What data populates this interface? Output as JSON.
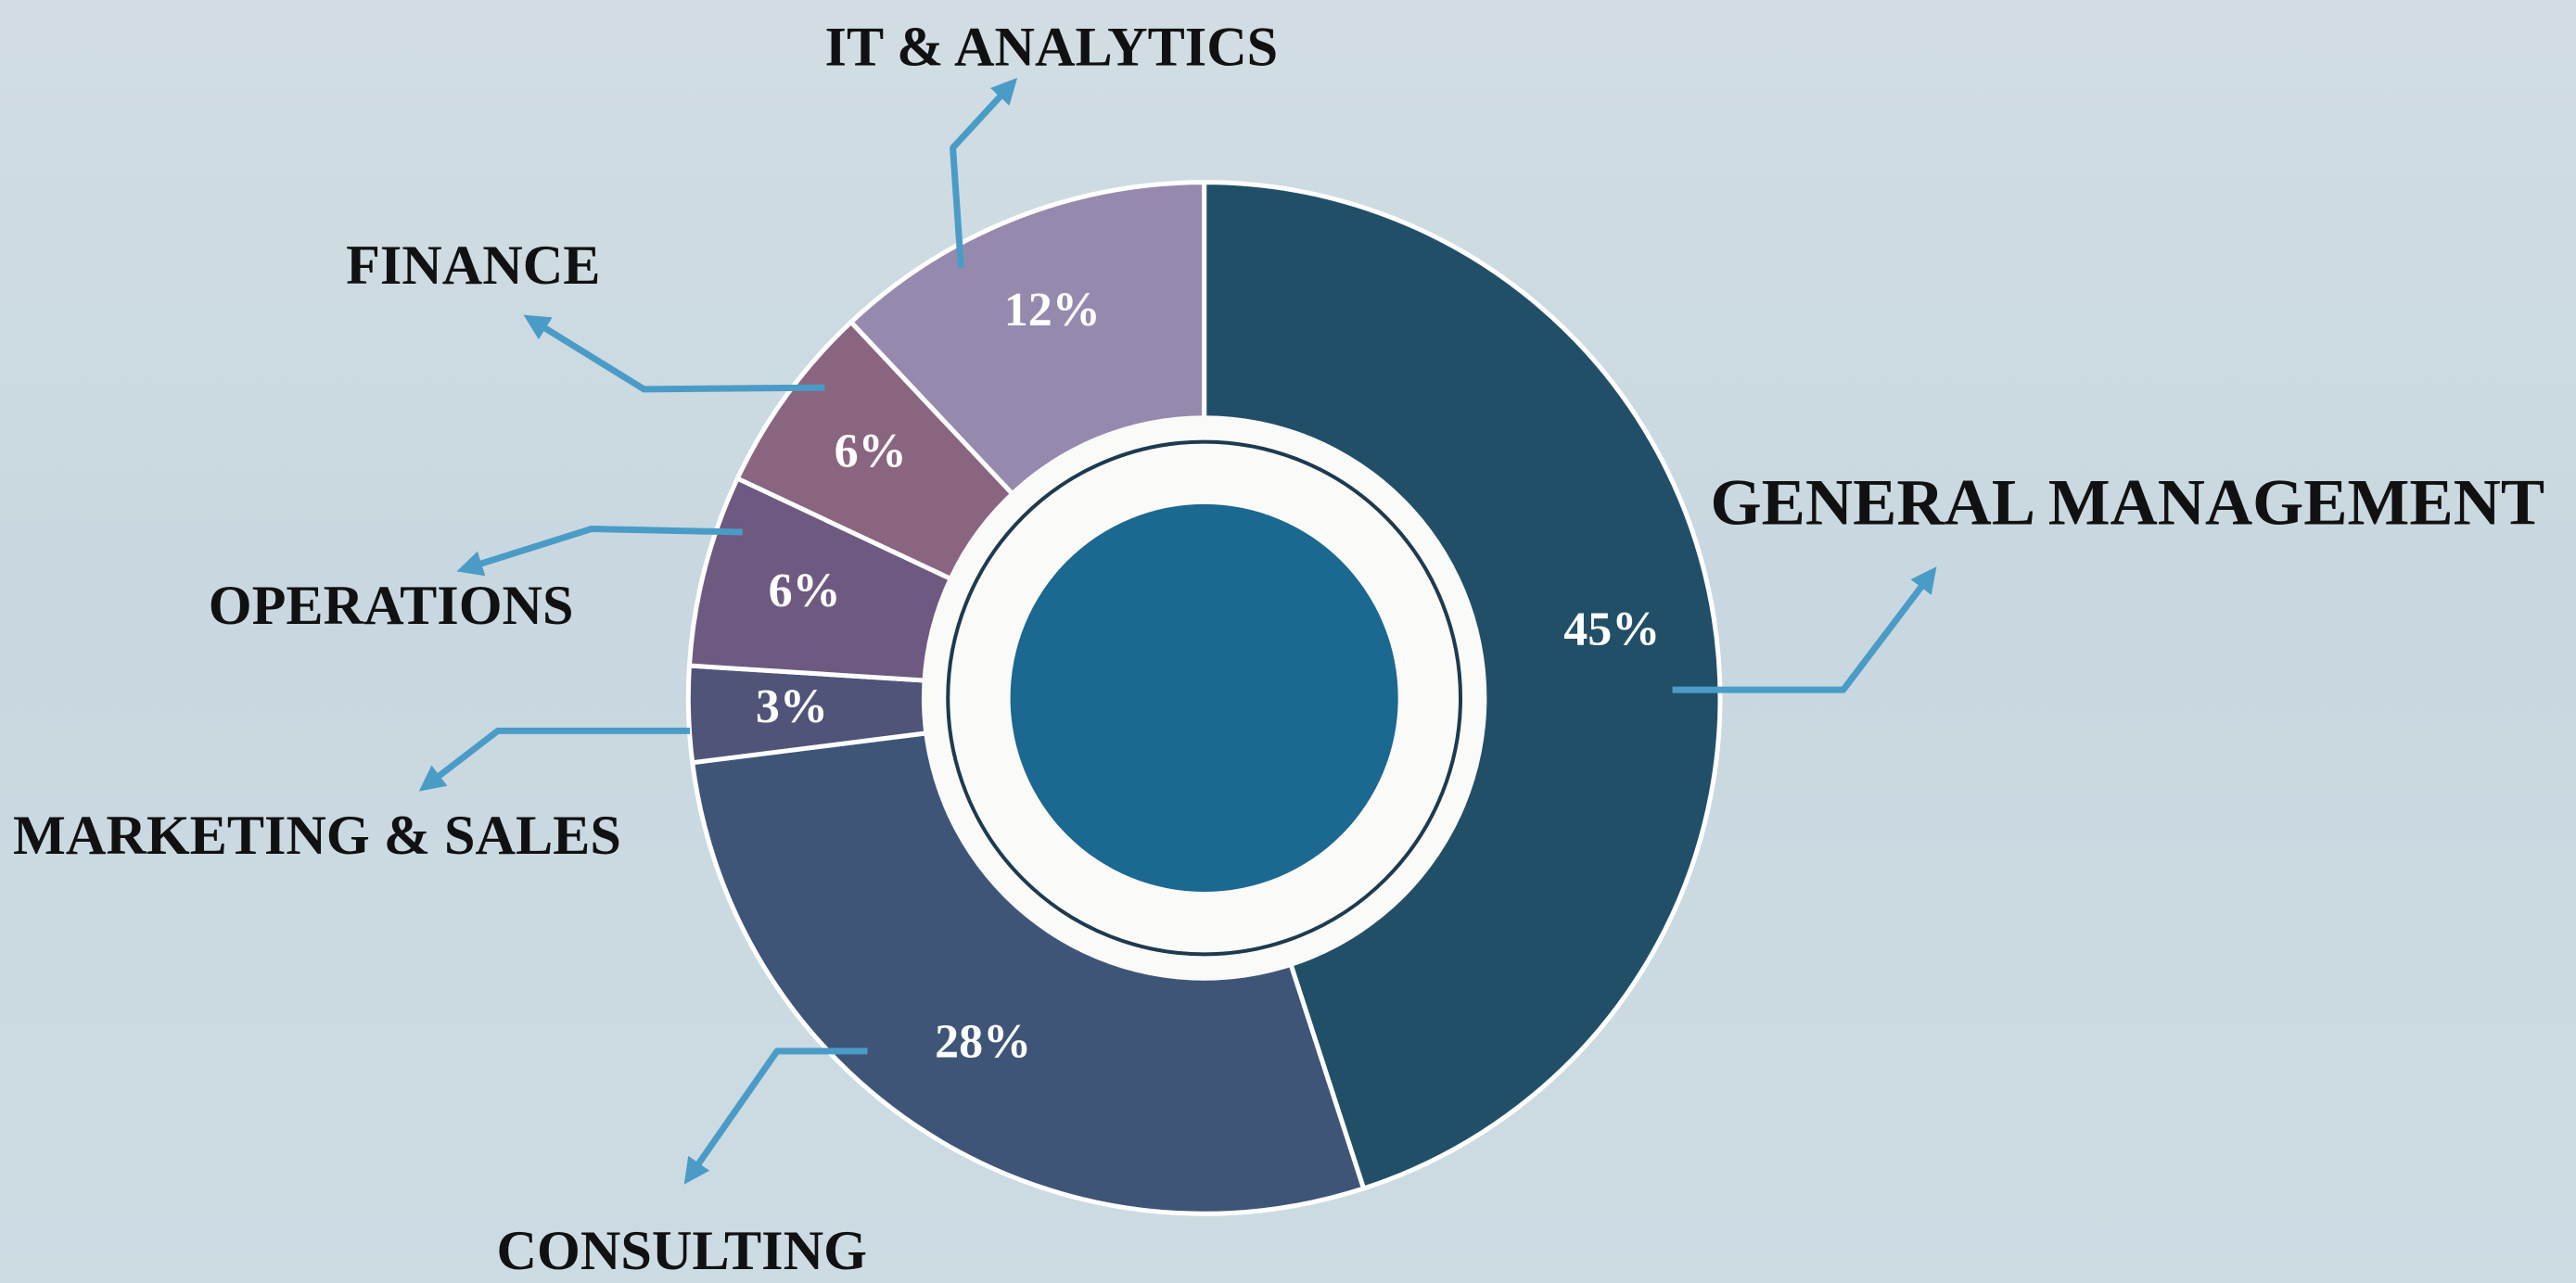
{
  "chart_data": {
    "type": "pie",
    "donut": true,
    "categories": [
      "GENERAL MANAGEMENT",
      "CONSULTING",
      "MARKETING & SALES",
      "OPERATIONS",
      "FINANCE",
      "IT & ANALYTICS"
    ],
    "values": [
      45,
      28,
      3,
      6,
      6,
      12
    ],
    "value_labels": [
      "45%",
      "28%",
      "3%",
      "6%",
      "6%",
      "12%"
    ],
    "colors": [
      "#224f68",
      "#3f5577",
      "#4f5478",
      "#6e5a80",
      "#8a6580",
      "#9689ae"
    ]
  }
}
